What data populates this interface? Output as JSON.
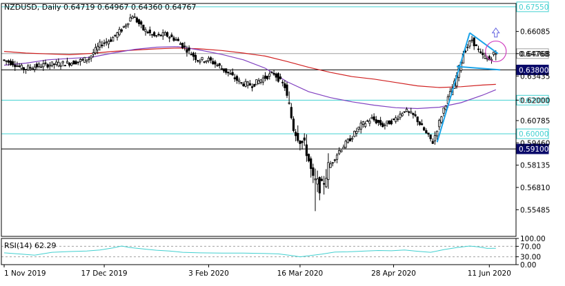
{
  "chart_data": [
    {
      "type": "candlestick",
      "title": "NZDUSD, Daily  0.64719 0.64967 0.64360 0.64767",
      "symbol": "NZDUSD",
      "timeframe": "Daily",
      "ohlc_last": {
        "open": 0.64719,
        "high": 0.64967,
        "low": 0.6436,
        "close": 0.64767
      },
      "ylim": [
        0.539,
        0.6775
      ],
      "y_ticks": [
        0.66085,
        0.64768,
        0.63435,
        0.62,
        0.60785,
        0.5946,
        0.58135,
        0.5681,
        0.55485
      ],
      "x_tick_labels": [
        "1 Nov 2019",
        "17 Dec 2019",
        "3 Feb 2020",
        "16 Mar 2020",
        "28 Apr 2020",
        "11 Jun 2020"
      ],
      "x_tick_days": [
        0,
        46,
        94,
        136,
        179,
        223
      ],
      "x_range_days": [
        0,
        234
      ],
      "horizontal_levels": [
        {
          "value": 0.6755,
          "label": "0.67550",
          "color": "#40d0d0",
          "style": "box-outline"
        },
        {
          "value": 0.64768,
          "label": "0.64768",
          "color": "#a0a0a0",
          "style": "current"
        },
        {
          "value": 0.638,
          "label": "0.63800",
          "color": "#000000",
          "style": "filled"
        },
        {
          "value": 0.62,
          "label": "0.62000",
          "color": "#40d0d0",
          "style": "box-outline"
        },
        {
          "value": 0.6,
          "label": "0.60000",
          "color": "#40d0d0",
          "style": "box-outline"
        },
        {
          "value": 0.591,
          "label": "0.59100",
          "color": "#000000",
          "style": "filled"
        }
      ],
      "moving_averages": [
        {
          "color": "#d02020",
          "points": [
            [
              0,
              0.649
            ],
            [
              10,
              0.648
            ],
            [
              20,
              0.6475
            ],
            [
              30,
              0.647
            ],
            [
              40,
              0.6478
            ],
            [
              50,
              0.649
            ],
            [
              60,
              0.6498
            ],
            [
              70,
              0.6505
            ],
            [
              80,
              0.651
            ],
            [
              90,
              0.6505
            ],
            [
              100,
              0.6495
            ],
            [
              110,
              0.648
            ],
            [
              120,
              0.6462
            ],
            [
              130,
              0.643
            ],
            [
              140,
              0.6395
            ],
            [
              150,
              0.6365
            ],
            [
              160,
              0.634
            ],
            [
              170,
              0.6325
            ],
            [
              180,
              0.6305
            ],
            [
              190,
              0.6285
            ],
            [
              200,
              0.6275
            ],
            [
              210,
              0.628
            ],
            [
              220,
              0.629
            ],
            [
              226,
              0.6294
            ]
          ]
        },
        {
          "color": "#8040c0",
          "points": [
            [
              0,
              0.6408
            ],
            [
              10,
              0.642
            ],
            [
              20,
              0.644
            ],
            [
              30,
              0.6448
            ],
            [
              40,
              0.6455
            ],
            [
              50,
              0.648
            ],
            [
              60,
              0.6502
            ],
            [
              70,
              0.6515
            ],
            [
              80,
              0.6518
            ],
            [
              90,
              0.6498
            ],
            [
              100,
              0.6472
            ],
            [
              110,
              0.644
            ],
            [
              120,
              0.639
            ],
            [
              130,
              0.631
            ],
            [
              140,
              0.625
            ],
            [
              150,
              0.6215
            ],
            [
              160,
              0.619
            ],
            [
              170,
              0.617
            ],
            [
              180,
              0.6155
            ],
            [
              190,
              0.615
            ],
            [
              200,
              0.6158
            ],
            [
              210,
              0.6185
            ],
            [
              220,
              0.623
            ],
            [
              226,
              0.6262
            ]
          ]
        }
      ],
      "price_path": [
        [
          0,
          0.644
        ],
        [
          5,
          0.642
        ],
        [
          10,
          0.6385
        ],
        [
          15,
          0.64
        ],
        [
          20,
          0.641
        ],
        [
          25,
          0.6415
        ],
        [
          30,
          0.642
        ],
        [
          35,
          0.643
        ],
        [
          40,
          0.645
        ],
        [
          45,
          0.653
        ],
        [
          50,
          0.656
        ],
        [
          55,
          0.662
        ],
        [
          60,
          0.6705
        ],
        [
          65,
          0.662
        ],
        [
          70,
          0.658
        ],
        [
          75,
          0.659
        ],
        [
          80,
          0.656
        ],
        [
          85,
          0.65
        ],
        [
          90,
          0.644
        ],
        [
          95,
          0.644
        ],
        [
          100,
          0.64
        ],
        [
          105,
          0.635
        ],
        [
          110,
          0.63
        ],
        [
          115,
          0.629
        ],
        [
          120,
          0.633
        ],
        [
          125,
          0.636
        ],
        [
          130,
          0.628
        ],
        [
          134,
          0.604
        ],
        [
          140,
          0.59
        ],
        [
          143,
          0.572
        ],
        [
          147,
          0.568
        ],
        [
          150,
          0.58
        ],
        [
          155,
          0.59
        ],
        [
          160,
          0.597
        ],
        [
          165,
          0.605
        ],
        [
          170,
          0.609
        ],
        [
          175,
          0.605
        ],
        [
          180,
          0.608
        ],
        [
          185,
          0.614
        ],
        [
          190,
          0.61
        ],
        [
          195,
          0.6
        ],
        [
          198,
          0.595
        ],
        [
          203,
          0.615
        ],
        [
          208,
          0.63
        ],
        [
          212,
          0.648
        ],
        [
          216,
          0.656
        ],
        [
          220,
          0.647
        ],
        [
          224,
          0.644
        ],
        [
          226,
          0.64767
        ]
      ],
      "annotations": {
        "trend_lines": [
          {
            "from": [
              199,
              0.595
            ],
            "to": [
              214,
              0.66
            ]
          },
          {
            "from": [
              214,
              0.66
            ],
            "to": [
              227,
              0.64768
            ]
          },
          {
            "from": [
              208,
              0.64
            ],
            "to": [
              228,
              0.638
            ]
          }
        ],
        "circle_center": [
          226,
          0.649
        ],
        "arrow_at": [
          226,
          0.66
        ],
        "arrow_direction": "up"
      }
    },
    {
      "type": "line",
      "title": "RSI(14) 62.29",
      "ylim": [
        0,
        100
      ],
      "y_ticks": [
        100,
        70,
        30,
        0
      ],
      "y_tick_labels": [
        "100.00",
        "70.00",
        "30.00",
        "0.00"
      ],
      "levels": [
        70,
        30
      ],
      "color": "#40d0d0",
      "points": [
        [
          0,
          45
        ],
        [
          8,
          40
        ],
        [
          14,
          36
        ],
        [
          22,
          47
        ],
        [
          30,
          50
        ],
        [
          38,
          52
        ],
        [
          44,
          56
        ],
        [
          50,
          64
        ],
        [
          54,
          71
        ],
        [
          58,
          65
        ],
        [
          64,
          60
        ],
        [
          70,
          55
        ],
        [
          76,
          52
        ],
        [
          82,
          47
        ],
        [
          90,
          45
        ],
        [
          100,
          44
        ],
        [
          110,
          44
        ],
        [
          118,
          43
        ],
        [
          126,
          41
        ],
        [
          132,
          35
        ],
        [
          136,
          30
        ],
        [
          140,
          34
        ],
        [
          146,
          40
        ],
        [
          152,
          48
        ],
        [
          158,
          49
        ],
        [
          166,
          52
        ],
        [
          172,
          54
        ],
        [
          178,
          53
        ],
        [
          184,
          56
        ],
        [
          190,
          51
        ],
        [
          196,
          47
        ],
        [
          202,
          57
        ],
        [
          208,
          65
        ],
        [
          214,
          71
        ],
        [
          218,
          68
        ],
        [
          222,
          62
        ],
        [
          226,
          62.29
        ]
      ]
    }
  ]
}
